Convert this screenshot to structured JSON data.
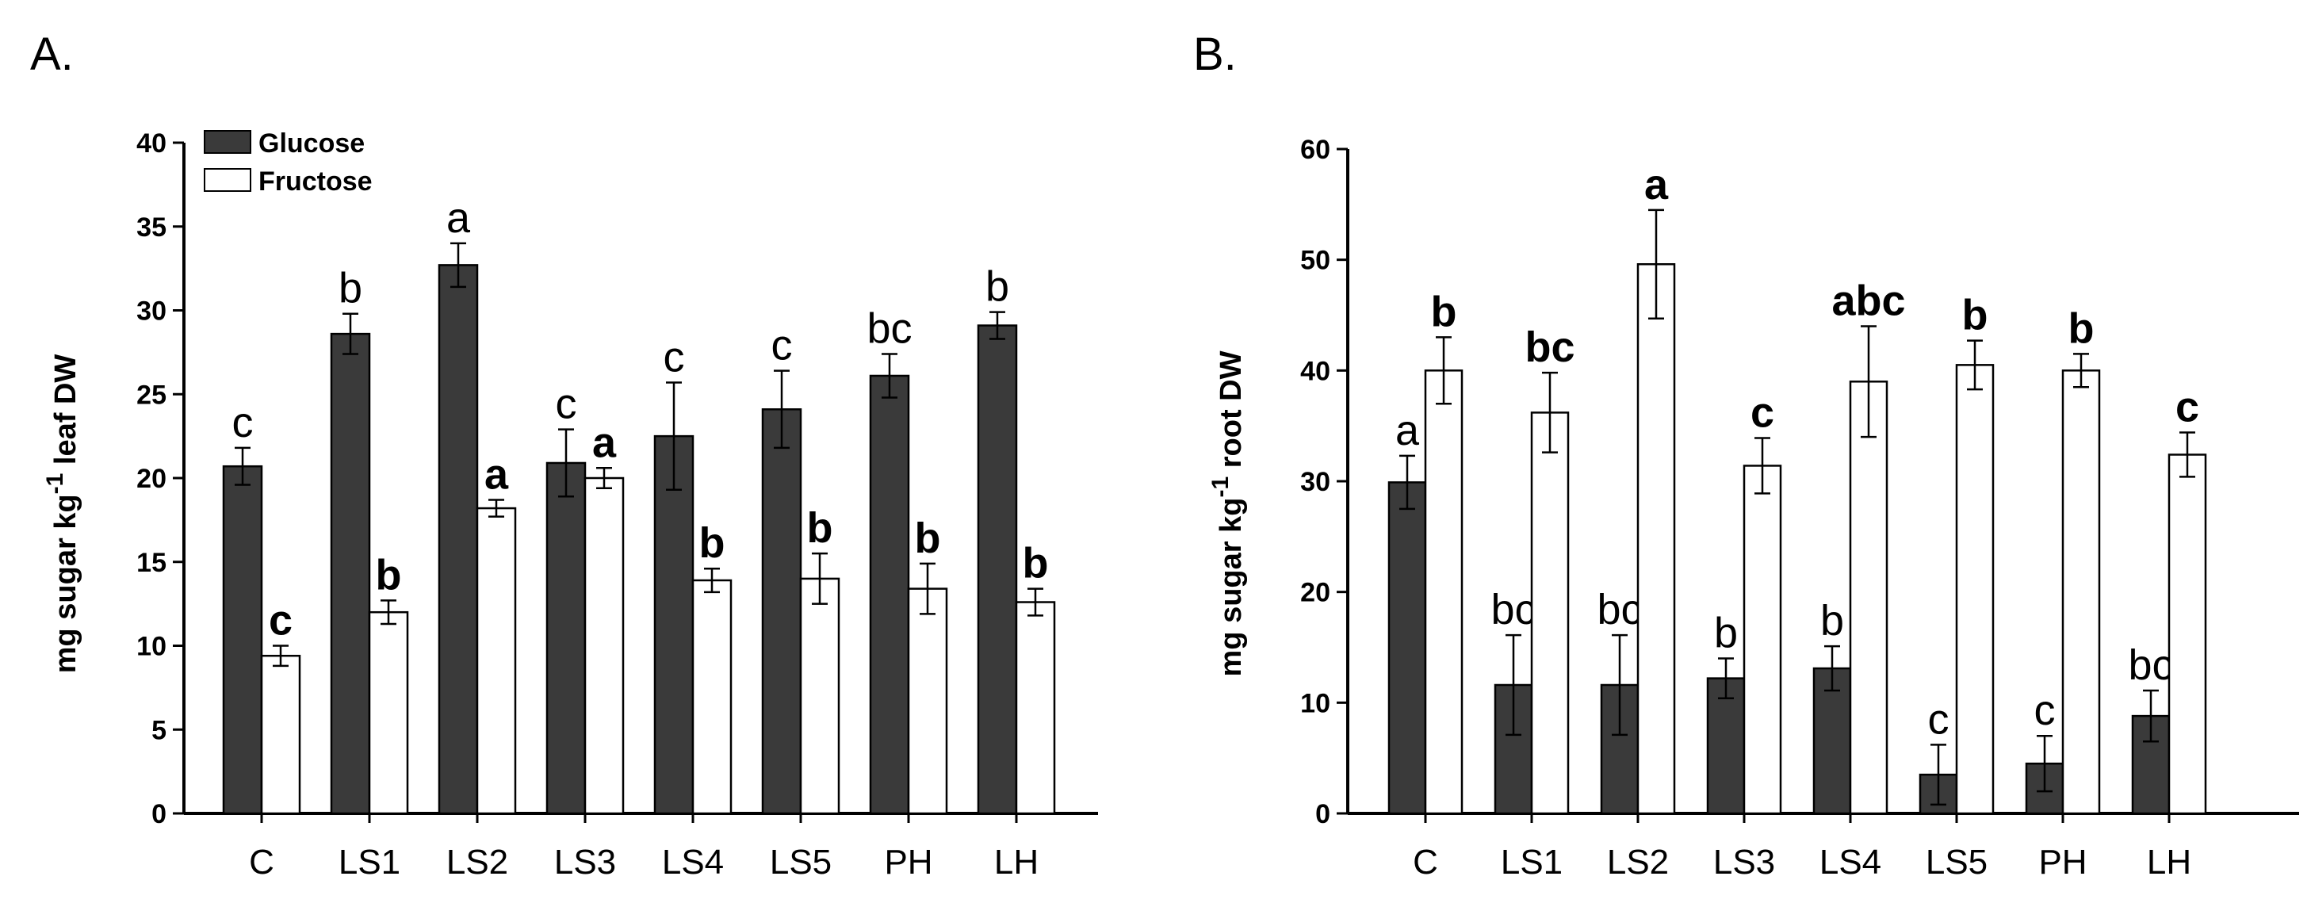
{
  "chart_data": [
    {
      "type": "bar",
      "panel_label": "A.",
      "title": "",
      "xlabel": "",
      "ylabel_main": "mg sugar kg",
      "ylabel_sup": "-1",
      "ylabel_tail": " leaf DW",
      "ylim": [
        0,
        40
      ],
      "yticks": [
        "0",
        "5",
        "10",
        "15",
        "20",
        "25",
        "30",
        "35",
        "40"
      ],
      "categories": [
        "C",
        "LS1",
        "LS2",
        "LS3",
        "LS4",
        "LS5",
        "PH",
        "LH"
      ],
      "legend": {
        "position": "top-left",
        "entries": [
          "Glucose",
          "Fructose"
        ]
      },
      "series": [
        {
          "name": "Glucose",
          "color": "#3a3a3a",
          "values": [
            20.7,
            28.6,
            32.7,
            20.9,
            22.5,
            24.1,
            26.1,
            29.1
          ],
          "errors": [
            1.1,
            1.2,
            1.3,
            2.0,
            3.2,
            2.3,
            1.3,
            0.8
          ],
          "labels": [
            "c",
            "b",
            "a",
            "c",
            "c",
            "c",
            "bc",
            "b"
          ],
          "label_bold": false
        },
        {
          "name": "Fructose",
          "color": "#ffffff",
          "values": [
            9.4,
            12.0,
            18.2,
            20.0,
            13.9,
            14.0,
            13.4,
            12.6
          ],
          "errors": [
            0.6,
            0.7,
            0.5,
            0.6,
            0.7,
            1.5,
            1.5,
            0.8
          ],
          "labels": [
            "c",
            "b",
            "a",
            "a",
            "b",
            "b",
            "b",
            "b"
          ],
          "label_bold": true
        }
      ]
    },
    {
      "type": "bar",
      "panel_label": "B.",
      "title": "",
      "xlabel": "",
      "ylabel_main": "mg sugar kg",
      "ylabel_sup": "-1",
      "ylabel_tail": " root DW",
      "ylim": [
        0,
        60
      ],
      "yticks": [
        "0",
        "10",
        "20",
        "30",
        "40",
        "50",
        "60"
      ],
      "categories": [
        "C",
        "LS1",
        "LS2",
        "LS3",
        "LS4",
        "LS5",
        "PH",
        "LH"
      ],
      "series": [
        {
          "name": "Glucose",
          "color": "#3a3a3a",
          "values": [
            29.9,
            11.6,
            11.6,
            12.2,
            13.1,
            3.5,
            4.5,
            8.8
          ],
          "errors": [
            2.4,
            4.5,
            4.5,
            1.8,
            2.0,
            2.7,
            2.5,
            2.3
          ],
          "labels": [
            "a",
            "bc",
            "bc",
            "b",
            "b",
            "c",
            "c",
            "bc"
          ],
          "label_bold": false
        },
        {
          "name": "Fructose",
          "color": "#ffffff",
          "values": [
            40.0,
            36.2,
            49.6,
            31.4,
            39.0,
            40.5,
            40.0,
            32.4
          ],
          "errors": [
            3.0,
            3.6,
            4.9,
            2.5,
            5.0,
            2.2,
            1.5,
            2.0
          ],
          "labels": [
            "b",
            "bc",
            "a",
            "c",
            "abc",
            "b",
            "b",
            "c"
          ],
          "label_bold": true
        }
      ]
    }
  ]
}
